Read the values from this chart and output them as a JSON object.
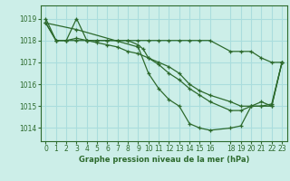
{
  "bg_color": "#cceee8",
  "grid_color": "#aadddd",
  "line_color": "#2d6a2d",
  "title": "Graphe pression niveau de la mer (hPa)",
  "xlim": [
    -0.5,
    23.5
  ],
  "ylim": [
    1013.4,
    1019.6
  ],
  "yticks": [
    1014,
    1015,
    1016,
    1017,
    1018,
    1019
  ],
  "xticks": [
    0,
    1,
    2,
    3,
    4,
    5,
    6,
    7,
    8,
    9,
    10,
    11,
    12,
    13,
    14,
    15,
    16,
    18,
    19,
    20,
    21,
    22,
    23
  ],
  "series1_x": [
    0,
    1,
    2,
    3,
    4,
    5,
    6,
    7,
    8,
    9,
    10,
    11,
    12,
    13,
    14,
    15,
    16,
    18,
    19,
    20,
    21,
    22,
    23
  ],
  "series1_y": [
    1019.0,
    1018.0,
    1018.0,
    1019.0,
    1018.0,
    1018.0,
    1018.0,
    1018.0,
    1018.0,
    1018.0,
    1018.0,
    1018.0,
    1018.0,
    1018.0,
    1018.0,
    1018.0,
    1018.0,
    1017.5,
    1017.5,
    1017.5,
    1017.2,
    1017.0,
    1017.0
  ],
  "series2_x": [
    0,
    1,
    2,
    3,
    4,
    5,
    6,
    7,
    8,
    9,
    9.5,
    10,
    11,
    12,
    13,
    14,
    15,
    16,
    18,
    19,
    20,
    21,
    22,
    23
  ],
  "series2_y": [
    1018.8,
    1018.0,
    1018.0,
    1018.1,
    1018.0,
    1018.0,
    1018.0,
    1018.0,
    1018.0,
    1017.8,
    1017.6,
    1017.2,
    1016.9,
    1016.5,
    1016.2,
    1015.8,
    1015.5,
    1015.2,
    1014.8,
    1014.8,
    1015.0,
    1015.0,
    1015.1,
    1017.0
  ],
  "series3_x": [
    0,
    1,
    2,
    3,
    4,
    5,
    6,
    7,
    8,
    9,
    10,
    11,
    12,
    13,
    14,
    15,
    16,
    18,
    19,
    20,
    21,
    22,
    23
  ],
  "series3_y": [
    1018.8,
    1018.0,
    1018.0,
    1018.0,
    1018.0,
    1017.9,
    1017.8,
    1017.7,
    1017.5,
    1017.4,
    1017.2,
    1017.0,
    1016.8,
    1016.5,
    1016.0,
    1015.7,
    1015.5,
    1015.2,
    1015.0,
    1015.0,
    1015.0,
    1015.0,
    1017.0
  ],
  "series4_x": [
    0,
    3,
    9,
    10,
    11,
    12,
    13,
    14,
    15,
    16,
    18,
    19,
    20,
    21,
    22,
    23
  ],
  "series4_y": [
    1018.8,
    1018.5,
    1017.7,
    1016.5,
    1015.8,
    1015.3,
    1015.0,
    1014.2,
    1014.0,
    1013.9,
    1014.0,
    1014.1,
    1015.0,
    1015.2,
    1015.0,
    1017.0
  ]
}
